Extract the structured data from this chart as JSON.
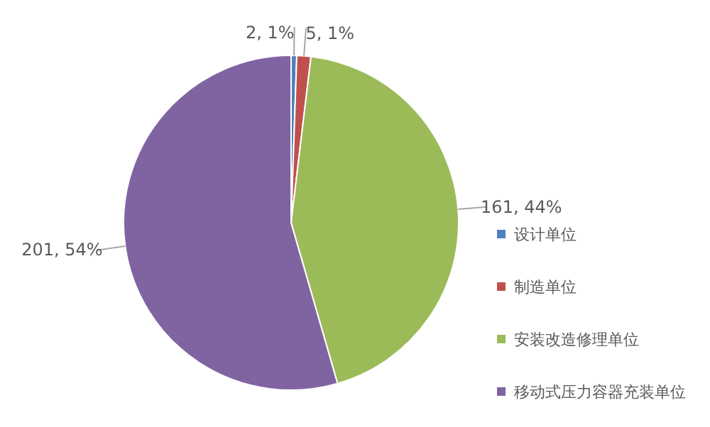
{
  "chart_data": {
    "type": "pie",
    "categories": [
      "设计单位",
      "制造单位",
      "安装改造修理单位",
      "移动式压力容器充装单位"
    ],
    "values": [
      2,
      5,
      161,
      201
    ],
    "colors": [
      "#4f81bd",
      "#c0504d",
      "#9bbb59",
      "#8064a2"
    ],
    "value_labels": [
      "2, 1%",
      "5, 1%",
      "161, 44%",
      "201, 54%"
    ],
    "legend": "right"
  }
}
